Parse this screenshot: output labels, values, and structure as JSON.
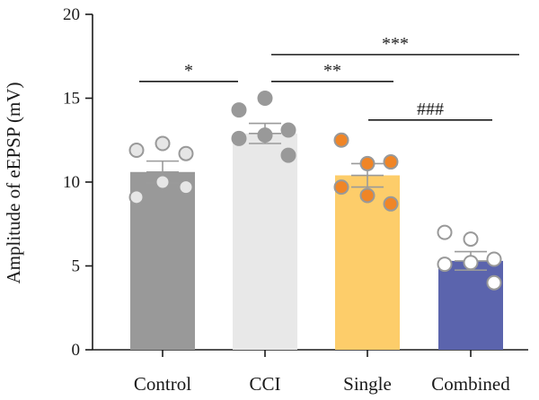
{
  "chart_data": {
    "type": "bar",
    "title": "",
    "xlabel": "",
    "ylabel": "Amplitude of eEPSP (mV)",
    "ylim": [
      0,
      20
    ],
    "yticks": [
      0,
      5,
      10,
      15,
      20
    ],
    "grid": false,
    "categories": [
      "Control",
      "CCI",
      "Single",
      "Combined"
    ],
    "bars": [
      {
        "category": "Control",
        "mean": 10.6,
        "sem": 0.65,
        "color": "#999999",
        "point_fill": "#e6e6e6",
        "point_stroke": "#999999",
        "points": [
          11.9,
          12.3,
          11.7,
          9.1,
          10.0,
          9.7
        ]
      },
      {
        "category": "CCI",
        "mean": 12.9,
        "sem": 0.6,
        "color": "#e8e8e8",
        "point_fill": "#999999",
        "point_stroke": "#999999",
        "points": [
          14.3,
          15.0,
          13.1,
          12.6,
          12.8,
          11.6
        ]
      },
      {
        "category": "Single",
        "mean": 10.4,
        "sem": 0.7,
        "color": "#fdcd6a",
        "point_fill": "#f08526",
        "point_stroke": "#999999",
        "points": [
          12.5,
          11.1,
          11.2,
          9.7,
          9.2,
          8.7
        ]
      },
      {
        "category": "Combined",
        "mean": 5.3,
        "sem": 0.55,
        "color": "#5b64ad",
        "point_fill": "#ffffff",
        "point_stroke": "#999999",
        "points": [
          7.0,
          6.6,
          5.4,
          5.1,
          5.2,
          4.0
        ]
      }
    ],
    "significance": [
      {
        "from": "Control",
        "to": "CCI",
        "label": "*",
        "y": 16.0
      },
      {
        "from": "CCI",
        "to": "Single",
        "label": "**",
        "y": 16.0
      },
      {
        "from": "CCI",
        "to": "Combined",
        "label": "***",
        "y": 17.6
      },
      {
        "from": "Single",
        "to": "Combined",
        "label": "###",
        "y": 13.7
      }
    ]
  }
}
